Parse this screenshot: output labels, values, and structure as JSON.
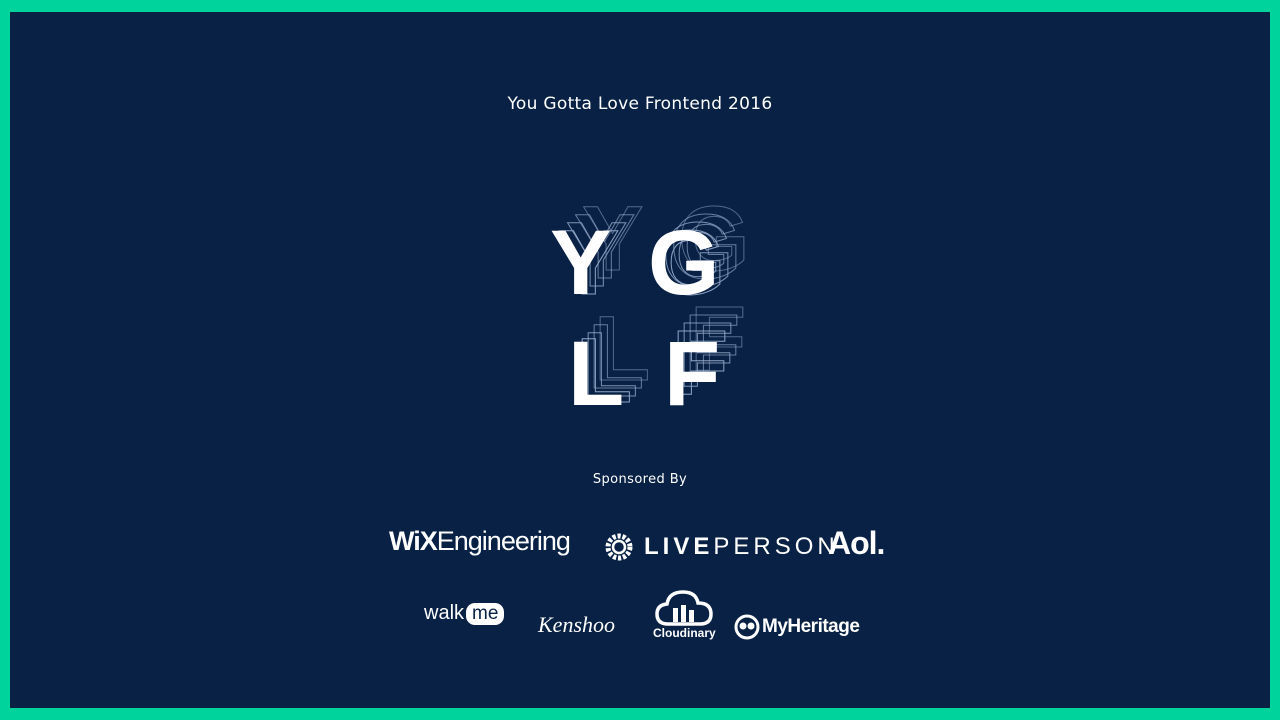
{
  "title": "You Gotta Love Frontend 2016",
  "logo": {
    "letters": [
      "Y",
      "G",
      "L",
      "F"
    ]
  },
  "sponsored_label": "Sponsored By",
  "sponsors": {
    "wix": {
      "part1": "WiX",
      "part2": "Engineering"
    },
    "liveperson": {
      "part1": "LIVE",
      "part2": "PERSON"
    },
    "aol": "Aol.",
    "walkme": {
      "part1": "walk",
      "part2": "me"
    },
    "kenshoo": "Kenshoo",
    "cloudinary": "Cloudinary",
    "myheritage": "MyHeritage"
  },
  "colors": {
    "border": "#00d39b",
    "background": "#082144",
    "text": "#ffffff"
  }
}
